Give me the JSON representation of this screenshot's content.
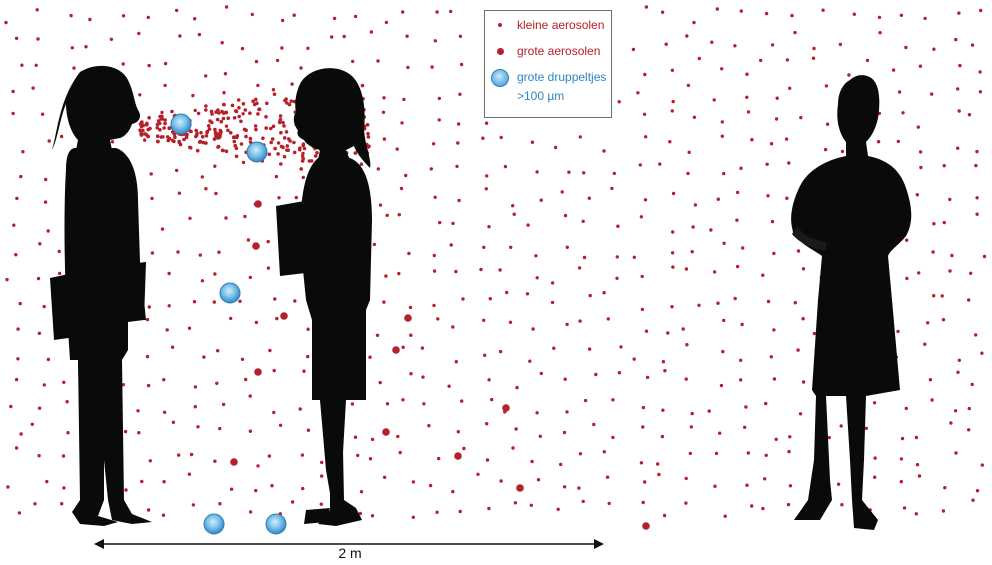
{
  "legend": {
    "items": [
      {
        "label": "kleine aerosolen",
        "symbol": "small-aerosol",
        "color": "#b5202a"
      },
      {
        "label": "grote aerosolen",
        "symbol": "large-aerosol",
        "color": "#b5202a"
      },
      {
        "label": "grote druppeltjes",
        "symbol": "large-droplet",
        "color": "#2e86c1"
      }
    ],
    "droplet_size_note": ">100 µm"
  },
  "distance": {
    "label": "2 m"
  },
  "colors": {
    "aerosol": "#b5202a",
    "droplet": "#4aa8dd",
    "silhouette": "#0a0a0a"
  }
}
